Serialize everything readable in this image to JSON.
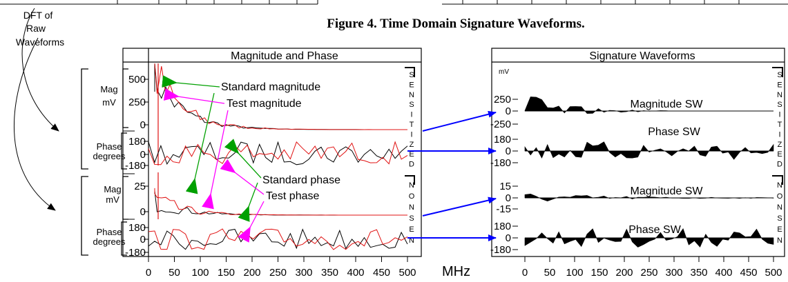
{
  "figure_caption": "Figure 4.  Time Domain Signature Waveforms.",
  "dft_label": [
    "DFT  of",
    "Raw",
    "Waveforms"
  ],
  "x_unit": "MHz",
  "colors": {
    "standard": "#000000",
    "test": "#e01010",
    "green_arrow": "#00a000",
    "magenta_arrow": "#ff00ff",
    "blue_arrow": "#0000ff"
  },
  "left_panel": {
    "title": "Magnitude and Phase",
    "x_ticks": [
      "0",
      "50",
      "100",
      "150",
      "200",
      "250",
      "300",
      "350",
      "400",
      "450",
      "500"
    ],
    "groups": [
      {
        "name": "mag-sensitized",
        "axis_label": [
          "Mag",
          "mV"
        ],
        "ticks": [
          "500",
          "250",
          "0"
        ]
      },
      {
        "name": "phase-sensitized",
        "axis_label": [
          "Phase",
          "degrees"
        ],
        "ticks": [
          "180",
          "0",
          "-180"
        ]
      },
      {
        "name": "mag-nonsensitized",
        "axis_label": [
          "Mag",
          "mV"
        ],
        "ticks": [
          "25",
          "0"
        ]
      },
      {
        "name": "phase-nonsensitized",
        "axis_label": [
          "Phase",
          "degrees"
        ],
        "ticks": [
          "180",
          "0",
          "-180"
        ]
      }
    ],
    "side_labels": {
      "sensitized": [
        "S",
        "E",
        "N",
        "S",
        "I",
        "T",
        "I",
        "Z",
        "E",
        "D"
      ],
      "nonsensitized": [
        "N",
        "O",
        "N",
        "S",
        "E",
        "N"
      ]
    },
    "annotations": [
      "Standard magnitude",
      "Test magnitude",
      "Standard phase",
      "Test phase"
    ]
  },
  "right_panel": {
    "title": "Signature Waveforms",
    "unit": "mV",
    "x_ticks": [
      "0",
      "50",
      "100",
      "150",
      "200",
      "250",
      "300",
      "350",
      "400",
      "450",
      "500"
    ],
    "groups": [
      {
        "name": "mag-sw-sensitized",
        "label": "Magnitude SW",
        "ticks": [
          "250",
          "0",
          "-250"
        ]
      },
      {
        "name": "phase-sw-sensitized",
        "label": "Phase SW",
        "ticks": [
          "180",
          "0",
          "-180"
        ]
      },
      {
        "name": "mag-sw-nonsensitized",
        "label": "Magnitude SW",
        "ticks": [
          "15",
          "0",
          "-15"
        ]
      },
      {
        "name": "phase-sw-nonsensitized",
        "label": "Phase SW",
        "ticks": [
          "180",
          "0",
          "-180"
        ]
      }
    ],
    "side_labels": {
      "sensitized": [
        "S",
        "E",
        "N",
        "S",
        "I",
        "T",
        "I",
        "Z",
        "E",
        "D"
      ],
      "nonsensitized": [
        "N",
        "O",
        "N",
        "S",
        "E",
        "N"
      ]
    }
  }
}
